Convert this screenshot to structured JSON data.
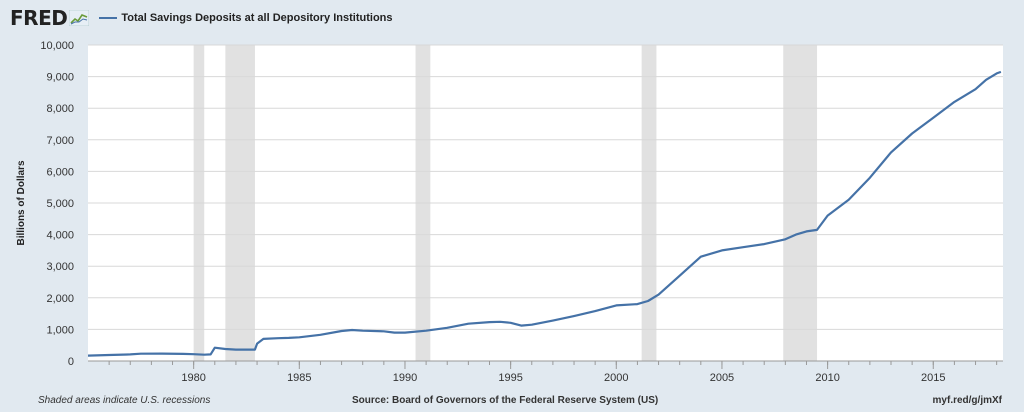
{
  "header": {
    "logo_text": "FRED",
    "legend_label": "Total Savings Deposits at all Depository Institutions",
    "legend_color": "#4572a7"
  },
  "footer": {
    "note": "Shaded areas indicate U.S. recessions",
    "source": "Source: Board of Governors of the Federal Reserve System (US)",
    "short_url": "myf.red/g/jmXf"
  },
  "chart_data": {
    "type": "line",
    "title": "",
    "xlabel": "",
    "ylabel": "Billions of Dollars",
    "x_range": [
      1975.0,
      2018.3
    ],
    "ylim": [
      0,
      10000
    ],
    "x_ticks": [
      1980,
      1985,
      1990,
      1995,
      2000,
      2005,
      2010,
      2015
    ],
    "y_ticks": [
      0,
      1000,
      2000,
      3000,
      4000,
      5000,
      6000,
      7000,
      8000,
      9000,
      10000
    ],
    "y_tick_labels": [
      "0",
      "1,000",
      "2,000",
      "3,000",
      "4,000",
      "5,000",
      "6,000",
      "7,000",
      "8,000",
      "9,000",
      "10,000"
    ],
    "grid": true,
    "recessions": [
      [
        1980.0,
        1980.5
      ],
      [
        1981.5,
        1982.9
      ],
      [
        1990.5,
        1991.2
      ],
      [
        2001.2,
        2001.9
      ],
      [
        2007.9,
        2009.5
      ]
    ],
    "series": [
      {
        "name": "Total Savings Deposits at all Depository Institutions",
        "color": "#4572a7",
        "x": [
          1975.0,
          1976.0,
          1977.0,
          1977.5,
          1978.5,
          1979.5,
          1980.0,
          1980.5,
          1980.8,
          1981.0,
          1981.5,
          1982.0,
          1982.5,
          1982.9,
          1983.0,
          1983.3,
          1984.0,
          1984.5,
          1985.0,
          1986.0,
          1987.0,
          1987.5,
          1988.0,
          1989.0,
          1989.5,
          1990.0,
          1991.0,
          1992.0,
          1993.0,
          1994.0,
          1994.5,
          1995.0,
          1995.5,
          1996.0,
          1997.0,
          1998.0,
          1999.0,
          2000.0,
          2001.0,
          2001.5,
          2002.0,
          2003.0,
          2004.0,
          2005.0,
          2006.0,
          2007.0,
          2008.0,
          2008.5,
          2009.0,
          2009.5,
          2010.0,
          2011.0,
          2012.0,
          2013.0,
          2014.0,
          2015.0,
          2016.0,
          2017.0,
          2017.5,
          2018.0,
          2018.2
        ],
        "values": [
          170,
          190,
          210,
          230,
          235,
          225,
          215,
          200,
          210,
          420,
          380,
          360,
          360,
          360,
          550,
          700,
          720,
          730,
          750,
          830,
          950,
          980,
          960,
          940,
          900,
          900,
          960,
          1050,
          1180,
          1230,
          1240,
          1210,
          1120,
          1150,
          1280,
          1420,
          1580,
          1760,
          1800,
          1900,
          2100,
          2700,
          3300,
          3500,
          3600,
          3700,
          3850,
          4000,
          4100,
          4150,
          4600,
          5100,
          5800,
          6600,
          7200,
          7700,
          8200,
          8600,
          8900,
          9100,
          9150
        ]
      }
    ]
  }
}
